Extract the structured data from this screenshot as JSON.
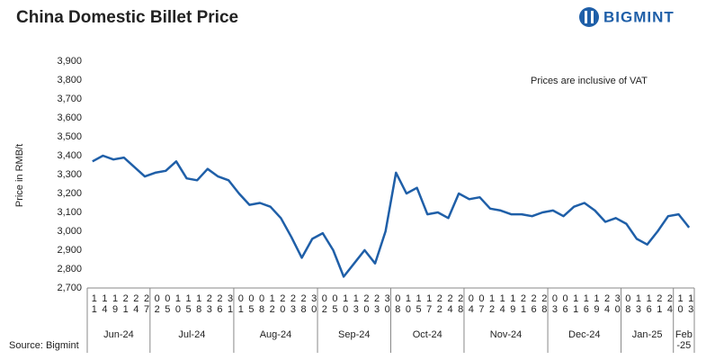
{
  "chart_data": {
    "type": "line",
    "title": "China Domestic Billet Price",
    "brand": "BIGMINT",
    "annotation": "Prices are inclusive of VAT",
    "source": "Source: Bigmint",
    "y_label": "Price in RMB/t",
    "groups": [
      {
        "label": "Jun-24",
        "categories": [
          "11",
          "14",
          "19",
          "21",
          "24",
          "27"
        ]
      },
      {
        "label": "Jul-24",
        "categories": [
          "02",
          "05",
          "10",
          "15",
          "18",
          "23",
          "26",
          "31"
        ]
      },
      {
        "label": "Aug-24",
        "categories": [
          "01",
          "05",
          "08",
          "12",
          "20",
          "23",
          "28",
          "30"
        ]
      },
      {
        "label": "Sep-24",
        "categories": [
          "02",
          "05",
          "10",
          "13",
          "20",
          "23",
          "30"
        ]
      },
      {
        "label": "Oct-24",
        "categories": [
          "08",
          "10",
          "15",
          "17",
          "22",
          "24",
          "28"
        ]
      },
      {
        "label": "Nov-24",
        "categories": [
          "04",
          "07",
          "12",
          "14",
          "19",
          "21",
          "26",
          "28"
        ]
      },
      {
        "label": "Dec-24",
        "categories": [
          "03",
          "06",
          "11",
          "16",
          "19",
          "24",
          "30"
        ]
      },
      {
        "label": "Jan-25",
        "categories": [
          "08",
          "13",
          "16",
          "21",
          "24"
        ]
      },
      {
        "label": "Feb -25",
        "categories": [
          "10",
          "13"
        ]
      }
    ],
    "series": [
      {
        "name": "China Domestic Billet Price",
        "color": "#1f5fa8",
        "values": [
          3370,
          3400,
          3380,
          3390,
          3340,
          3290,
          3310,
          3320,
          3370,
          3280,
          3270,
          3330,
          3290,
          3270,
          3200,
          3140,
          3150,
          3130,
          3070,
          2970,
          2860,
          2960,
          2990,
          2900,
          2760,
          2830,
          2900,
          2830,
          3000,
          3310,
          3200,
          3230,
          3090,
          3100,
          3070,
          3200,
          3170,
          3180,
          3120,
          3110,
          3090,
          3090,
          3080,
          3100,
          3110,
          3080,
          3130,
          3150,
          3110,
          3050,
          3070,
          3040,
          2960,
          2930,
          3000,
          3080,
          3090,
          3020
        ]
      }
    ],
    "ylim": [
      2700,
      3900
    ],
    "yticks": [
      {
        "value": 2700,
        "label": "2,700"
      },
      {
        "value": 2800,
        "label": "2,800"
      },
      {
        "value": 2900,
        "label": "2,900"
      },
      {
        "value": 3000,
        "label": "3,000"
      },
      {
        "value": 3100,
        "label": "3,100"
      },
      {
        "value": 3200,
        "label": "3,200"
      },
      {
        "value": 3300,
        "label": "3,300"
      },
      {
        "value": 3400,
        "label": "3,400"
      },
      {
        "value": 3500,
        "label": "3,500"
      },
      {
        "value": 3600,
        "label": "3,600"
      },
      {
        "value": 3700,
        "label": "3,700"
      },
      {
        "value": 3800,
        "label": "3,800"
      },
      {
        "value": 3900,
        "label": "3,900"
      }
    ],
    "grid": false
  }
}
